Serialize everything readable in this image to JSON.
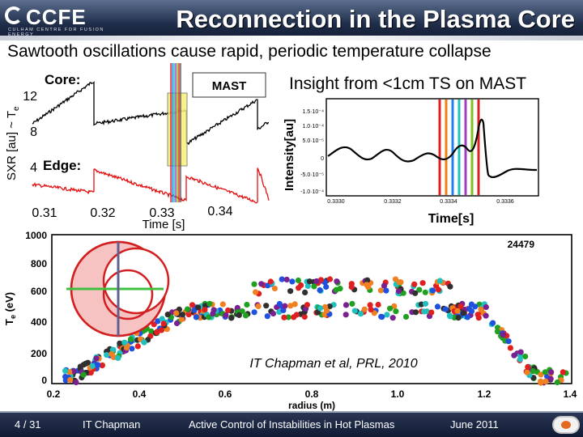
{
  "header": {
    "logo_text": "CCFE",
    "logo_sub": "CULHAM CENTRE FOR FUSION ENERGY",
    "title": "Reconnection in the Plasma Core",
    "colors": {
      "header_bg": "#1f2d4a",
      "title": "#ffffff"
    }
  },
  "subtitle": "Sawtooth oscillations cause rapid, periodic temperature collapse",
  "sxr_plot": {
    "ylabel": "SXR [au] ~ T",
    "ylabel_sub": "e",
    "core_label": "Core:",
    "edge_label": "Edge:",
    "mast_label": "MAST",
    "xlabel": "Time [s]",
    "yticks": [
      "12",
      "8",
      "4"
    ],
    "xticks": [
      "0.31",
      "0.32",
      "0.33",
      "0.34"
    ]
  },
  "insight": "Insight from <1cm TS on MAST",
  "intensity_plot": {
    "ylabel": "Intensity[au]",
    "xlabel": "Time[s]",
    "yticks": [
      "1.5·10⁻⁴",
      "1.0·10⁻⁴",
      "5.0·10⁻⁵",
      "0",
      "-5.0·10⁻⁵",
      "-1.0·10⁻⁴"
    ],
    "xticks": [
      "0.3330",
      "0.3332",
      "0.3334",
      "0.3336"
    ],
    "line_colors": [
      "#e02020",
      "#f07f10",
      "#2080f0",
      "#20c0c0",
      "#a040c0",
      "#80c020",
      "#e02020"
    ]
  },
  "te_plot": {
    "ylabel": "T",
    "ylabel_sub": "e",
    "ylabel_unit": " (eV)",
    "xlabel": "radius (m)",
    "shot": "24479",
    "citation": "IT Chapman et al, PRL, 2010",
    "yticks": [
      "1000",
      "800",
      "600",
      "400",
      "200",
      "0"
    ],
    "xticks": [
      "0.2",
      "0.4",
      "0.6",
      "0.8",
      "1.0",
      "1.2",
      "1.4"
    ]
  },
  "footer": {
    "page": "4 / 31",
    "author": "IT Chapman",
    "event": "Active Control of Instabilities in Hot Plasmas",
    "date": "June 2011"
  }
}
